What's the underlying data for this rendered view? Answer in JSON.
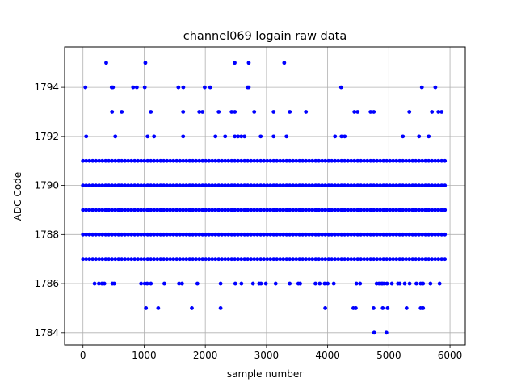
{
  "chart_data": {
    "type": "scatter",
    "title": "channel069 logain raw data",
    "xlabel": "sample number",
    "ylabel": "ADC Code",
    "xlim": [
      -300,
      6250
    ],
    "ylim": [
      1783.5,
      1795.65
    ],
    "xticks": [
      0,
      1000,
      2000,
      3000,
      4000,
      5000,
      6000
    ],
    "yticks": [
      1784,
      1786,
      1788,
      1790,
      1792,
      1794
    ],
    "grid": true,
    "marker_color": "#0000ff",
    "n_samples": 5936,
    "band_densities": {
      "1793": 0.05,
      "1792": 0.06,
      "1791": 1,
      "1790": 1,
      "1789": 1,
      "1788": 1,
      "1787": 0.25
    },
    "band_xrange": [
      0,
      5950
    ],
    "sparse_points": [
      {
        "y": 1795,
        "x": [
          380,
          1020,
          2480,
          2710,
          3290
        ]
      },
      {
        "y": 1794,
        "x": [
          40,
          470,
          490,
          820,
          880,
          1010,
          1560,
          1640,
          1990,
          2080,
          2690,
          2710,
          4220,
          5540,
          5760
        ]
      },
      {
        "y": 1786,
        "x": [
          190,
          260,
          310,
          350,
          480,
          510,
          950,
          1010,
          1050,
          1110,
          1330,
          1570,
          1620,
          1870,
          2250,
          2490,
          2590,
          2780,
          2880,
          2910,
          2990,
          3150,
          3380,
          3520,
          3550,
          3800,
          3870,
          3950,
          4000,
          4100,
          4470,
          4530,
          4800,
          4840,
          4880,
          4900,
          4930,
          4970,
          5050,
          5150,
          5180,
          5260,
          5340,
          5450,
          5520,
          5560,
          5680,
          5830
        ]
      },
      {
        "y": 1785,
        "x": [
          1030,
          1230,
          1780,
          2250,
          3960,
          4420,
          4460,
          4750,
          4900,
          4980,
          5290,
          5520,
          5560
        ]
      },
      {
        "y": 1784,
        "x": [
          4760,
          4960
        ]
      }
    ]
  }
}
